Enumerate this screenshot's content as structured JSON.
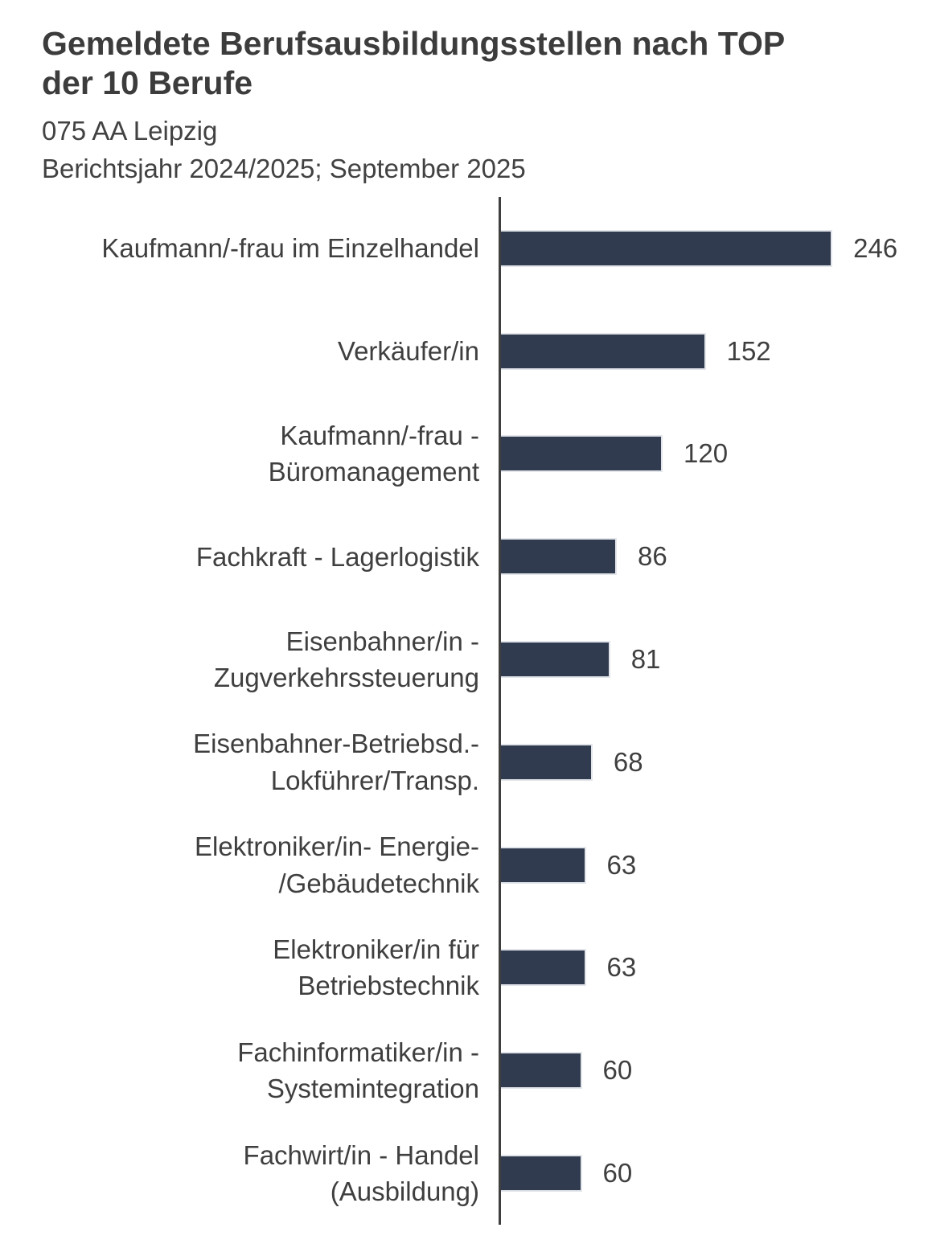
{
  "header": {
    "title": "Gemeldete Berufsausbildungsstellen nach TOP der 10 Berufe",
    "subtitle": "075 AA Leipzig",
    "period": "Berichtsjahr 2024/2025; September 2025"
  },
  "chart_data": {
    "type": "bar",
    "orientation": "horizontal",
    "title": "Gemeldete Berufsausbildungsstellen nach TOP der 10 Berufe",
    "subtitle": "075 AA Leipzig",
    "period_note": "Berichtsjahr 2024/2025; September 2025",
    "categories": [
      "Kaufmann/-frau im Einzelhandel",
      "Verkäufer/in",
      "Kaufmann/-frau - Büromanagement",
      "Fachkraft - Lagerlogistik",
      "Eisenbahner/in - Zugverkehrssteuerung",
      "Eisenbahner-Betriebsd.- Lokführer/Transp.",
      "Elektroniker/in- Energie- /Gebäudetechnik",
      "Elektroniker/in für Betriebstechnik",
      "Fachinformatiker/in - Systemintegration",
      "Fachwirt/in - Handel (Ausbildung)"
    ],
    "label_lines": [
      [
        "Kaufmann/-frau im Einzelhandel"
      ],
      [
        "Verkäufer/in"
      ],
      [
        "Kaufmann/-frau -",
        "Büromanagement"
      ],
      [
        "Fachkraft - Lagerlogistik"
      ],
      [
        "Eisenbahner/in -",
        "Zugverkehrssteuerung"
      ],
      [
        "Eisenbahner-Betriebsd.-",
        "Lokführer/Transp."
      ],
      [
        "Elektroniker/in- Energie-",
        "/Gebäudetechnik"
      ],
      [
        "Elektroniker/in für",
        "Betriebstechnik"
      ],
      [
        "Fachinformatiker/in -",
        "Systemintegration"
      ],
      [
        "Fachwirt/in - Handel",
        "(Ausbildung)"
      ]
    ],
    "values": [
      246,
      152,
      120,
      86,
      81,
      68,
      63,
      63,
      60,
      60
    ],
    "data_labels": [
      "246",
      "152",
      "120",
      "86",
      "81",
      "68",
      "63",
      "63",
      "60",
      "60"
    ],
    "xlabel": "",
    "ylabel": "",
    "xlim": [
      0,
      320
    ],
    "grid": false,
    "legend_position": "none",
    "value_label_position": "outside-end",
    "bar_color": "#313b50",
    "axis_line_color": "#3f3f3f",
    "text_color": "#3f3f3f",
    "background_color": "#ffffff"
  }
}
